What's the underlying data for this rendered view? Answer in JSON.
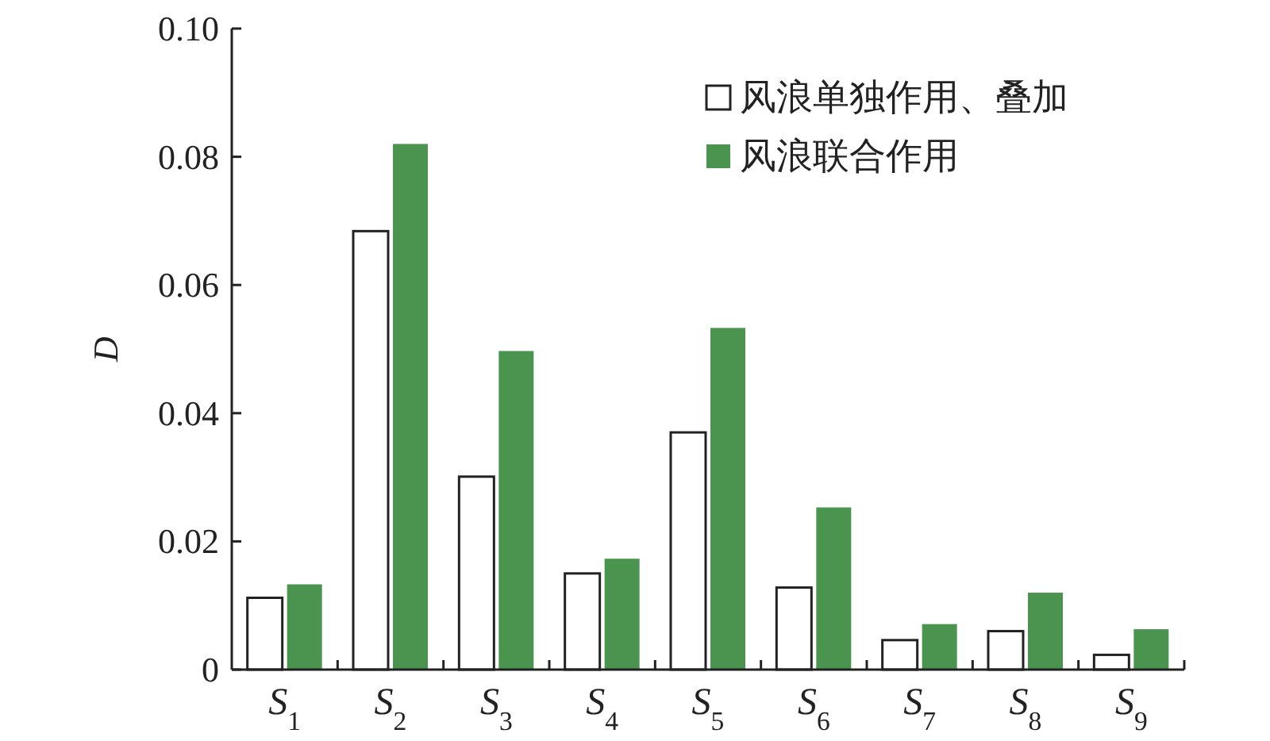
{
  "chart_data": {
    "type": "bar",
    "ylabel": "D",
    "categories": [
      "S$_{1}$",
      "S$_{2}$",
      "S$_{3}$",
      "S$_{4}$",
      "S$_{5}$",
      "S$_{6}$",
      "S$_{7}$",
      "S$_{8}$",
      "S$_{9}$"
    ],
    "series": [
      {
        "name": "风浪单独作用、叠加",
        "color": "#ffffff",
        "values": [
          0.0112,
          0.0684,
          0.0301,
          0.015,
          0.037,
          0.0128,
          0.0046,
          0.006,
          0.0023
        ]
      },
      {
        "name": "风浪联合作用",
        "color": "#4a944f",
        "values": [
          0.0133,
          0.082,
          0.0497,
          0.0173,
          0.0533,
          0.0253,
          0.0071,
          0.012,
          0.0063
        ]
      }
    ],
    "ylim": [
      0,
      0.1
    ],
    "yticks": [
      0,
      {
        "value": 0.02,
        "label": "0.02"
      },
      {
        "value": 0.04,
        "label": "0.04"
      },
      {
        "value": 0.06,
        "label": "0.06"
      },
      {
        "value": 0.08,
        "label": "0.08"
      },
      {
        "value": 0.1,
        "label": "0.10"
      }
    ],
    "legend": "top right"
  }
}
